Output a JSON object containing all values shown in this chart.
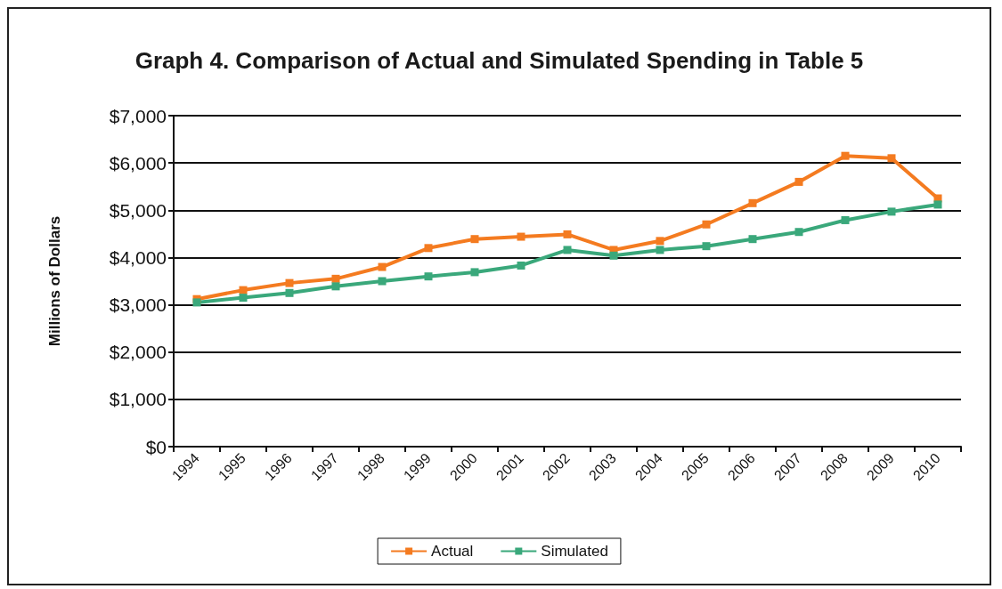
{
  "chart_data": {
    "type": "line",
    "title": "Graph 4. Comparison of Actual and Simulated Spending in Table 5",
    "ylabel": "Millions of Dollars",
    "categories": [
      "1994",
      "1995",
      "1996",
      "1997",
      "1998",
      "1999",
      "2000",
      "2001",
      "2002",
      "2003",
      "2004",
      "2005",
      "2006",
      "2007",
      "2008",
      "2009",
      "2010"
    ],
    "series": [
      {
        "name": "Actual",
        "color": "#f47b20",
        "values": [
          3120,
          3310,
          3460,
          3550,
          3800,
          4200,
          4390,
          4440,
          4490,
          4160,
          4350,
          4700,
          5150,
          5600,
          6150,
          6100,
          5250
        ]
      },
      {
        "name": "Simulated",
        "color": "#3aa87b",
        "values": [
          3050,
          3150,
          3250,
          3390,
          3500,
          3600,
          3690,
          3830,
          4160,
          4040,
          4160,
          4240,
          4390,
          4540,
          4790,
          4970,
          5120
        ]
      }
    ],
    "ylim": [
      0,
      7000
    ],
    "yticks": [
      {
        "value": 0,
        "label": "$0"
      },
      {
        "value": 1000,
        "label": "$1,000"
      },
      {
        "value": 2000,
        "label": "$2,000"
      },
      {
        "value": 3000,
        "label": "$3,000"
      },
      {
        "value": 4000,
        "label": "$4,000"
      },
      {
        "value": 5000,
        "label": "$5,000"
      },
      {
        "value": 6000,
        "label": "$6,000"
      },
      {
        "value": 7000,
        "label": "$7,000"
      }
    ],
    "grid": "y",
    "legend": "bottom",
    "marker": "square",
    "line_style": "solid"
  }
}
